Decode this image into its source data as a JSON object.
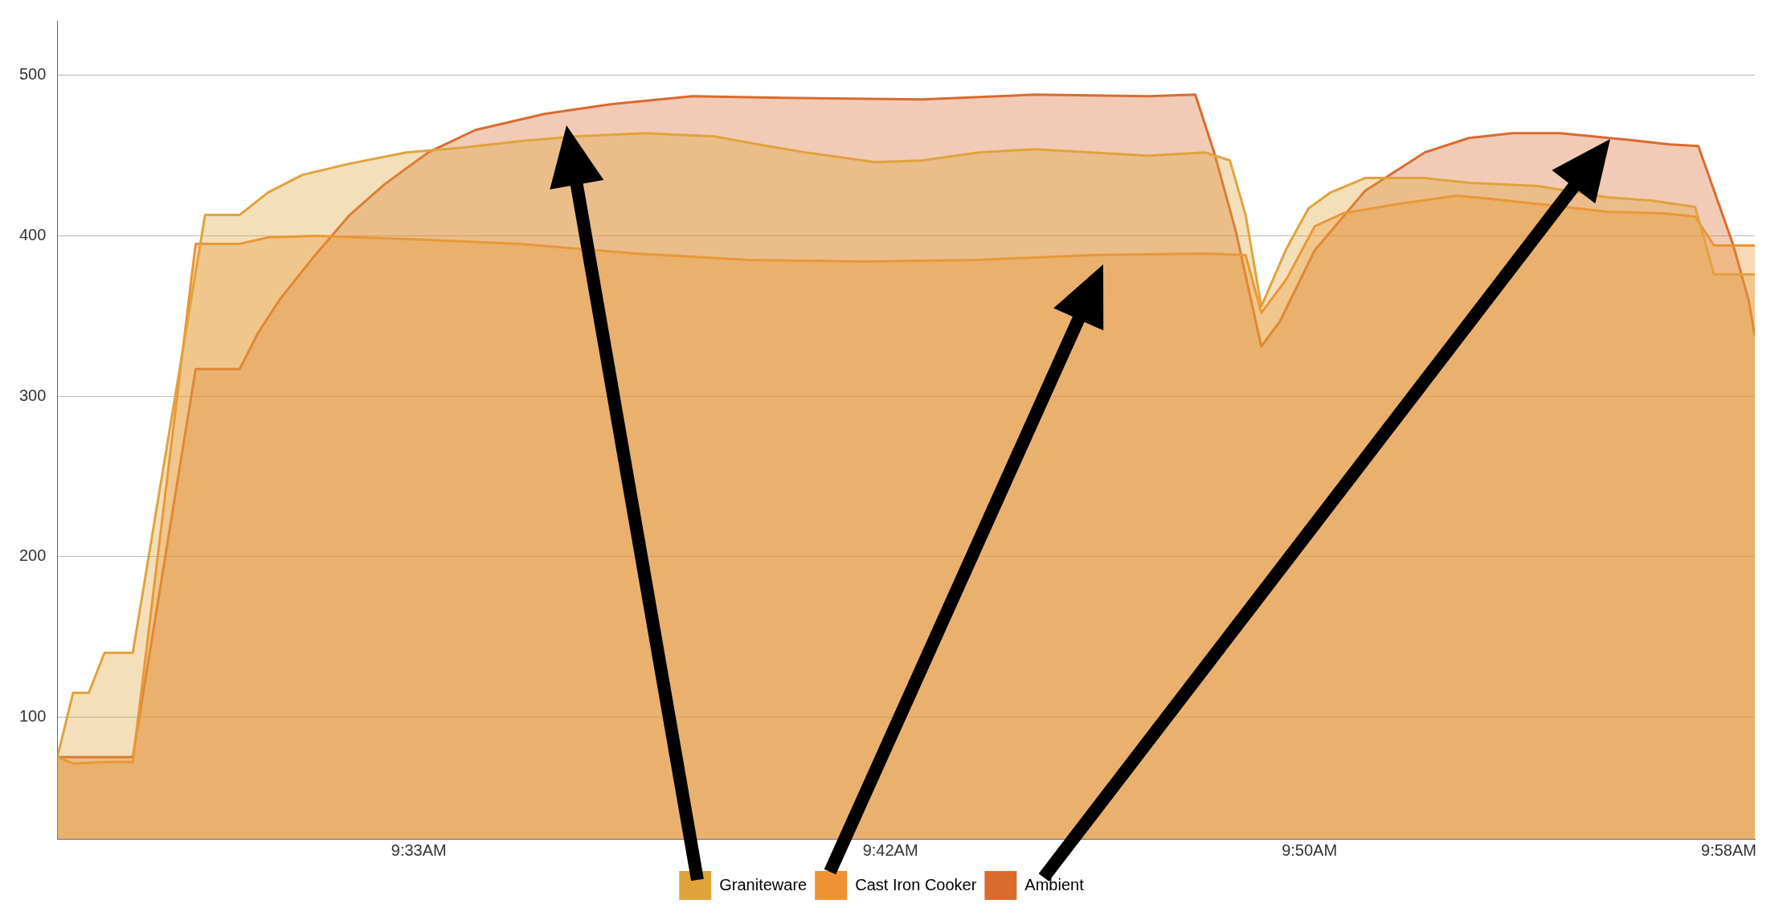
{
  "chart_data": {
    "type": "area",
    "xlim": [
      9.435,
      9.975
    ],
    "ylim": [
      24,
      534
    ],
    "xticks": [
      {
        "value": 9.55,
        "label": "9:33AM"
      },
      {
        "value": 9.7,
        "label": "9:42AM"
      },
      {
        "value": 9.8333,
        "label": "9:50AM"
      },
      {
        "value": 9.9667,
        "label": "9:58AM"
      }
    ],
    "yticks": [
      100,
      200,
      300,
      400,
      500
    ],
    "grid": "y",
    "legend": "bottom",
    "marker": "none",
    "line_style": "solid",
    "series": [
      {
        "name": "Graniteware",
        "color": "#e0a33c",
        "x": [
          9.435,
          9.44,
          9.445,
          9.45,
          9.459,
          9.482,
          9.493,
          9.502,
          9.513,
          9.528,
          9.546,
          9.564,
          9.582,
          9.6,
          9.622,
          9.644,
          9.658,
          9.673,
          9.695,
          9.71,
          9.728,
          9.746,
          9.764,
          9.782,
          9.8,
          9.808,
          9.813,
          9.818,
          9.826,
          9.833,
          9.84,
          9.851,
          9.87,
          9.884,
          9.906,
          9.928,
          9.942,
          9.956,
          9.962,
          9.975
        ],
        "values": [
          75,
          115,
          115,
          140,
          140,
          413,
          413,
          427,
          438,
          445,
          452,
          455,
          459,
          462,
          464,
          462,
          457,
          452,
          446,
          447,
          452,
          454,
          452,
          450,
          452,
          447,
          413,
          356,
          392,
          417,
          427,
          436,
          436,
          433,
          431,
          424,
          422,
          418,
          376,
          376
        ]
      },
      {
        "name": "Cast Iron Cooker",
        "color": "#ee9234",
        "x": [
          9.435,
          9.44,
          9.451,
          9.459,
          9.479,
          9.493,
          9.502,
          9.517,
          9.546,
          9.582,
          9.619,
          9.655,
          9.691,
          9.728,
          9.764,
          9.8,
          9.813,
          9.818,
          9.826,
          9.835,
          9.844,
          9.862,
          9.88,
          9.891,
          9.91,
          9.928,
          9.946,
          9.956,
          9.962,
          9.975
        ],
        "values": [
          75,
          71,
          72,
          72,
          395,
          395,
          399,
          400,
          398,
          395,
          389,
          385,
          384,
          385,
          388,
          389,
          388,
          352,
          373,
          406,
          414,
          420,
          425,
          423,
          419,
          415,
          414,
          412,
          394,
          394
        ]
      },
      {
        "name": "Ambient",
        "color": "#d96b2e",
        "x": [
          9.435,
          9.459,
          9.479,
          9.493,
          9.499,
          9.506,
          9.517,
          9.528,
          9.539,
          9.553,
          9.568,
          9.59,
          9.611,
          9.637,
          9.666,
          9.71,
          9.746,
          9.782,
          9.797,
          9.803,
          9.81,
          9.818,
          9.824,
          9.835,
          9.851,
          9.87,
          9.884,
          9.898,
          9.913,
          9.934,
          9.948,
          9.957,
          9.968,
          9.973,
          9.975
        ],
        "values": [
          75,
          75,
          317,
          317,
          340,
          361,
          388,
          413,
          432,
          452,
          466,
          476,
          482,
          487,
          486,
          485,
          488,
          487,
          488,
          452,
          402,
          331,
          347,
          391,
          428,
          452,
          461,
          464,
          464,
          460,
          457,
          456,
          395,
          360,
          338
        ]
      }
    ]
  }
}
